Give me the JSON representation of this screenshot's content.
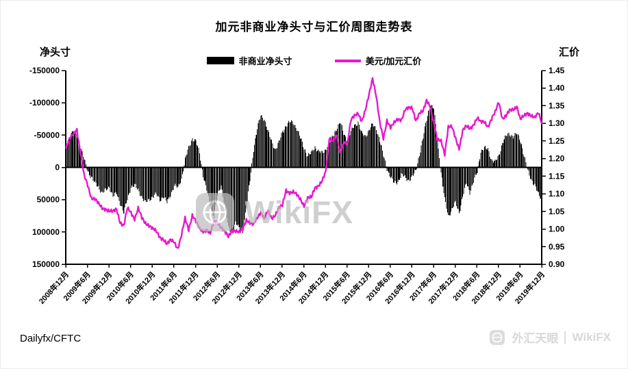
{
  "window": {
    "title": "加元非商业净头寸与汇价周图走势表"
  },
  "axes": {
    "left": {
      "title": "净头寸",
      "ticks": [
        "-150000",
        "-100000",
        "-50000",
        "0",
        "50000",
        "100000",
        "150000"
      ]
    },
    "right": {
      "title": "汇价",
      "ticks": [
        "1.45",
        "1.40",
        "1.35",
        "1.30",
        "1.25",
        "1.20",
        "1.15",
        "1.10",
        "1.05",
        "1.00",
        "0.95",
        "0.90"
      ]
    },
    "x": {
      "ticks": [
        "2008年12月",
        "2009年6月",
        "2009年12月",
        "2010年6月",
        "2010年12月",
        "2011年6月",
        "2011年12月",
        "2012年6月",
        "2012年12月",
        "2013年6月",
        "2013年12月",
        "2014年6月",
        "2014年12月",
        "2015年6月",
        "2015年12月",
        "2016年6月",
        "2016年12月",
        "2017年6月",
        "2017年12月",
        "2018年6月",
        "2018年12月",
        "2019年6月",
        "2019年12月"
      ]
    }
  },
  "legend": {
    "bar_label": "非商业净头寸",
    "line_label": "美元/加元汇价",
    "bar_color": "#000000",
    "line_color": "#e817cf"
  },
  "source_label": "Dailyfx/CFTC",
  "watermarks": {
    "center_text": "WikiFX",
    "corner_text_cn": "外汇天眼",
    "corner_text_en": "WikiFX"
  },
  "chart_data": {
    "type": "combo (bar + line)",
    "title": "加元非商业净头寸与汇价周图走势表",
    "x_axis": {
      "start": "2008-12",
      "end": "2019-12",
      "interval": "monthly (estimated readings of weekly chart)",
      "count": 133
    },
    "x_tick_labels": [
      "2008年12月",
      "2009年6月",
      "2009年12月",
      "2010年6月",
      "2010年12月",
      "2011年6月",
      "2011年12月",
      "2012年6月",
      "2012年12月",
      "2013年6月",
      "2013年12月",
      "2014年6月",
      "2014年12月",
      "2015年6月",
      "2015年12月",
      "2016年6月",
      "2016年12月",
      "2017年6月",
      "2017年12月",
      "2018年6月",
      "2018年12月",
      "2019年6月",
      "2019年12月"
    ],
    "left_axis": {
      "title": "净头寸",
      "range": [
        -150000,
        150000
      ],
      "inverted": true
    },
    "right_axis": {
      "title": "汇价",
      "range": [
        0.9,
        1.45
      ]
    },
    "grid": false,
    "legend_position": "top-center",
    "series": [
      {
        "name": "非商业净头寸",
        "type": "bar",
        "axis": "left",
        "color": "#000000",
        "values": [
          -35000,
          -48000,
          -55000,
          -50000,
          -32000,
          -12000,
          5000,
          15000,
          25000,
          30000,
          40000,
          35000,
          30000,
          45000,
          40000,
          55000,
          70000,
          50000,
          30000,
          28000,
          35000,
          45000,
          55000,
          50000,
          45000,
          42000,
          50000,
          45000,
          55000,
          42000,
          28000,
          32000,
          18000,
          -12000,
          -30000,
          -45000,
          -40000,
          -22000,
          12000,
          35000,
          62000,
          75000,
          45000,
          28000,
          58000,
          95000,
          100000,
          85000,
          95000,
          100000,
          62000,
          20000,
          -28000,
          -60000,
          -80000,
          -75000,
          -55000,
          -40000,
          -28000,
          -38000,
          -55000,
          -65000,
          -70000,
          -70000,
          -60000,
          -45000,
          -30000,
          -18000,
          -22000,
          -32000,
          -25000,
          -22000,
          -28000,
          -38000,
          -48000,
          -60000,
          -70000,
          -52000,
          -42000,
          -55000,
          -65000,
          -70000,
          -52000,
          -48000,
          -58000,
          -66000,
          -60000,
          -42000,
          -18000,
          2000,
          15000,
          25000,
          22000,
          12000,
          15000,
          20000,
          15000,
          5000,
          -20000,
          -45000,
          -75000,
          -98000,
          -90000,
          -40000,
          8000,
          50000,
          75000,
          65000,
          55000,
          70000,
          45000,
          25000,
          38000,
          22000,
          8000,
          -25000,
          -30000,
          -28000,
          -12000,
          -8000,
          -18000,
          -38000,
          -48000,
          -52000,
          -48000,
          -52000,
          -42000,
          -18000,
          5000,
          18000,
          28000,
          42000,
          50000
        ]
      },
      {
        "name": "美元/加元汇价",
        "type": "line",
        "axis": "right",
        "color": "#e817cf",
        "values": [
          1.23,
          1.255,
          1.27,
          1.285,
          1.215,
          1.15,
          1.125,
          1.09,
          1.085,
          1.07,
          1.06,
          1.058,
          1.05,
          1.048,
          1.058,
          1.02,
          1.008,
          1.058,
          1.048,
          1.03,
          1.058,
          1.03,
          1.018,
          1.012,
          1.0,
          0.992,
          0.978,
          0.972,
          0.955,
          0.968,
          0.965,
          0.945,
          0.98,
          1.03,
          1.0,
          1.04,
          1.02,
          1.0,
          0.995,
          0.998,
          0.985,
          1.02,
          1.022,
          1.005,
          0.99,
          0.978,
          0.998,
          0.995,
          0.988,
          1.0,
          1.028,
          1.018,
          1.01,
          1.032,
          1.05,
          1.03,
          1.05,
          1.03,
          1.042,
          1.06,
          1.065,
          1.11,
          1.105,
          1.105,
          1.095,
          1.085,
          1.068,
          1.088,
          1.088,
          1.118,
          1.125,
          1.135,
          1.16,
          1.26,
          1.25,
          1.268,
          1.21,
          1.248,
          1.245,
          1.308,
          1.32,
          1.33,
          1.308,
          1.335,
          1.38,
          1.43,
          1.38,
          1.3,
          1.255,
          1.31,
          1.29,
          1.3,
          1.31,
          1.312,
          1.34,
          1.342,
          1.342,
          1.31,
          1.33,
          1.332,
          1.365,
          1.35,
          1.3,
          1.25,
          1.25,
          1.215,
          1.29,
          1.288,
          1.258,
          1.23,
          1.28,
          1.29,
          1.285,
          1.298,
          1.315,
          1.302,
          1.305,
          1.292,
          1.312,
          1.33,
          1.362,
          1.315,
          1.32,
          1.335,
          1.34,
          1.35,
          1.31,
          1.32,
          1.33,
          1.324,
          1.315,
          1.328,
          1.3
        ]
      }
    ]
  }
}
